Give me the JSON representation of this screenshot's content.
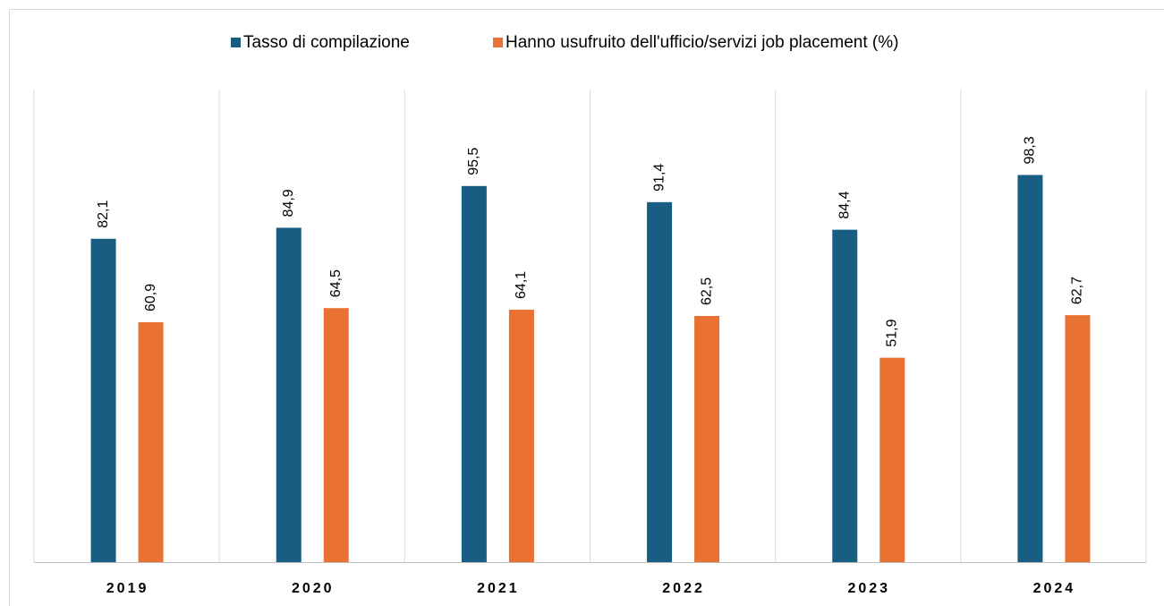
{
  "chart_data": {
    "type": "bar",
    "categories": [
      "2019",
      "2020",
      "2021",
      "2022",
      "2023",
      "2024"
    ],
    "series": [
      {
        "name": "Tasso di compilazione",
        "color": "#175e82",
        "values": [
          82.1,
          84.9,
          95.5,
          91.4,
          84.4,
          98.3
        ],
        "value_labels": [
          "82,1",
          "84,9",
          "95,5",
          "91,4",
          "84,4",
          "98,3"
        ]
      },
      {
        "name": "Hanno usufruito dell'ufficio/servizi job placement (%)",
        "color": "#e97132",
        "values": [
          60.9,
          64.5,
          64.1,
          62.5,
          51.9,
          62.7
        ],
        "value_labels": [
          "60,9",
          "64,5",
          "64,1",
          "62,5",
          "51,9",
          "62,7"
        ]
      }
    ],
    "ylim": [
      0,
      120
    ],
    "legend": "top"
  }
}
